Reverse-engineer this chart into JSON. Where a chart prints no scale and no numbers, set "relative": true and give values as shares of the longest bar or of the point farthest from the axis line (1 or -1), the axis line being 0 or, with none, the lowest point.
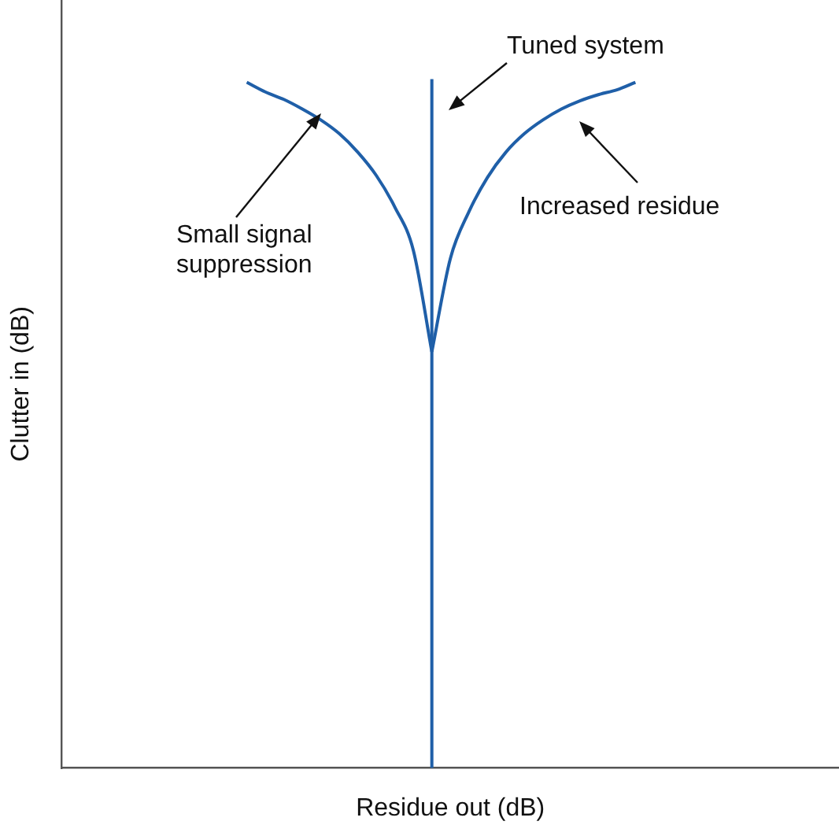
{
  "chart_data": {
    "type": "line",
    "relative": true,
    "xlabel": "Residue out (dB)",
    "ylabel": "Clutter in (dB)",
    "grid": false,
    "legend": false,
    "tick_labels": false,
    "marker": "none",
    "categories": [
      null,
      null,
      null,
      null,
      null,
      null,
      null,
      null,
      null,
      null,
      null,
      null,
      null,
      null,
      null,
      null,
      null,
      null,
      null,
      null,
      null,
      null,
      null,
      null,
      null,
      null,
      null,
      null,
      null,
      null,
      null,
      null,
      null,
      null,
      null,
      null,
      null,
      null,
      null,
      null,
      null,
      null,
      null
    ],
    "series": [
      {
        "color": "#1f5fa8",
        "values": [
          null,
          null,
          null,
          null,
          null,
          null,
          null,
          null,
          null,
          null,
          1,
          0.986,
          0.975,
          0.961,
          0.945,
          0.925,
          0.898,
          0.864,
          0.818,
          0.755,
          0.607,
          null,
          null,
          null,
          null,
          null,
          null,
          null,
          null,
          null,
          null,
          null,
          null,
          null,
          null,
          null,
          null,
          null,
          null,
          null,
          null,
          null,
          null
        ]
      },
      {
        "color": "#1f5fa8",
        "values": [
          null,
          null,
          null,
          null,
          null,
          null,
          null,
          null,
          null,
          null,
          null,
          null,
          null,
          null,
          null,
          null,
          null,
          null,
          null,
          null,
          0.607,
          0.743,
          0.811,
          0.861,
          0.898,
          0.925,
          0.945,
          0.961,
          0.973,
          0.982,
          0.989,
          1,
          null,
          null,
          null,
          null,
          null,
          null,
          null,
          null,
          null,
          null,
          null
        ]
      }
    ],
    "annotations": [
      "Tuned system",
      "Small signal suppression",
      "Increased residue"
    ]
  }
}
